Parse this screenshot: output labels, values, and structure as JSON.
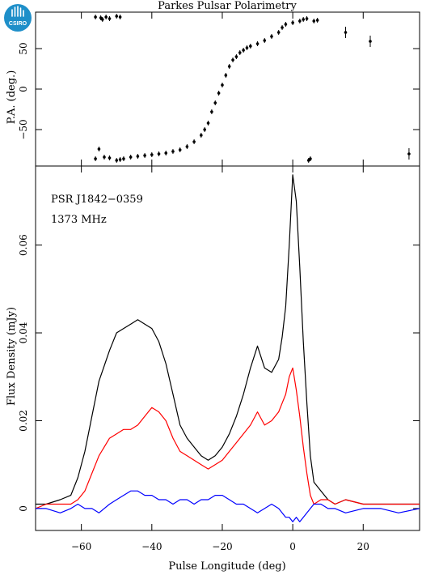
{
  "chart_data": [
    {
      "type": "scatter",
      "panel": "top",
      "title": "Parkes Pulsar Polarimetry",
      "ylabel": "P.A. (deg.)",
      "xlim": [
        -73,
        36
      ],
      "ylim": [
        -95,
        95
      ],
      "yticks": [
        -50,
        0,
        50
      ],
      "grid": false,
      "series": [
        {
          "points": [
            [
              -56,
              89
            ],
            [
              -54.5,
              88
            ],
            [
              -54,
              86
            ],
            [
              -53,
              89
            ],
            [
              -52,
              87
            ],
            [
              -50,
              90
            ],
            [
              -49,
              89
            ],
            [
              -56,
              -86
            ],
            [
              -55,
              -74
            ],
            [
              -53.5,
              -84
            ],
            [
              -52,
              -85
            ],
            [
              -50,
              -88
            ],
            [
              -49,
              -87
            ],
            [
              -48,
              -86
            ],
            [
              -46,
              -84
            ],
            [
              -44,
              -83
            ],
            [
              -42,
              -82
            ],
            [
              -40,
              -81
            ],
            [
              -38,
              -80
            ],
            [
              -36,
              -79
            ],
            [
              -34,
              -77
            ],
            [
              -32,
              -75
            ],
            [
              -30,
              -71
            ],
            [
              -28,
              -65
            ],
            [
              -26,
              -57
            ],
            [
              -25,
              -50
            ],
            [
              -24,
              -42
            ],
            [
              -23,
              -28
            ],
            [
              -22,
              -17
            ],
            [
              -21,
              -5
            ],
            [
              -20,
              5
            ],
            [
              -19,
              17
            ],
            [
              -18,
              28
            ],
            [
              -17,
              36
            ],
            [
              -16,
              40
            ],
            [
              -15,
              45
            ],
            [
              -14,
              48
            ],
            [
              -13,
              51
            ],
            [
              -12,
              53
            ],
            [
              -10,
              56
            ],
            [
              -8,
              60
            ],
            [
              -6,
              65
            ],
            [
              -4,
              70
            ],
            [
              -3,
              76
            ],
            [
              -2,
              80
            ],
            [
              0,
              82
            ],
            [
              2,
              84
            ],
            [
              3,
              86
            ],
            [
              4,
              87
            ],
            [
              4.5,
              -88
            ],
            [
              5,
              -86
            ],
            [
              6,
              84
            ],
            [
              7,
              85
            ],
            [
              15,
              70
            ],
            [
              22,
              59
            ],
            [
              33,
              -80
            ]
          ]
        }
      ]
    },
    {
      "type": "line",
      "panel": "bottom",
      "title": "",
      "xlabel": "Pulse Longitude (deg)",
      "ylabel": "Flux Density (mJy)",
      "xlim": [
        -73,
        36
      ],
      "ylim": [
        -0.005,
        0.078
      ],
      "xticks": [
        -60,
        -40,
        -20,
        0,
        20
      ],
      "yticks": [
        0,
        0.02,
        0.04,
        0.06
      ],
      "ytick_labels": [
        "0",
        "0.02",
        "0.04",
        "0.06"
      ],
      "annotations": [
        "PSR J1842−0359",
        "1373 MHz"
      ],
      "grid": false,
      "series": [
        {
          "color": "#000000",
          "x": [
            -73,
            -70,
            -66,
            -63,
            -61,
            -59,
            -57,
            -55,
            -52,
            -50,
            -48,
            -46,
            -44,
            -42,
            -40,
            -38,
            -36,
            -34,
            -32,
            -30,
            -28,
            -26,
            -24,
            -22,
            -20,
            -18,
            -16,
            -14,
            -12,
            -10,
            -8,
            -6,
            -4,
            -3,
            -2,
            -1,
            0,
            1,
            2,
            3,
            4,
            5,
            6,
            8,
            10,
            12,
            15,
            20,
            25,
            30,
            36
          ],
          "y": [
            0.001,
            0.001,
            0.002,
            0.003,
            0.007,
            0.013,
            0.021,
            0.029,
            0.036,
            0.04,
            0.041,
            0.042,
            0.043,
            0.042,
            0.041,
            0.038,
            0.033,
            0.026,
            0.019,
            0.016,
            0.014,
            0.012,
            0.011,
            0.012,
            0.014,
            0.017,
            0.021,
            0.026,
            0.032,
            0.037,
            0.032,
            0.031,
            0.034,
            0.039,
            0.046,
            0.06,
            0.076,
            0.07,
            0.055,
            0.038,
            0.024,
            0.012,
            0.006,
            0.004,
            0.002,
            0.001,
            0.002,
            0.001,
            0.001,
            0.001,
            0.001
          ]
        },
        {
          "color": "#ff0000",
          "x": [
            -73,
            -70,
            -66,
            -63,
            -61,
            -59,
            -57,
            -55,
            -52,
            -50,
            -48,
            -46,
            -44,
            -42,
            -40,
            -38,
            -36,
            -34,
            -32,
            -30,
            -28,
            -26,
            -24,
            -22,
            -20,
            -18,
            -16,
            -14,
            -12,
            -10,
            -8,
            -6,
            -4,
            -3,
            -2,
            -1,
            0,
            1,
            2,
            3,
            4,
            5,
            6,
            8,
            10,
            12,
            15,
            20,
            25,
            30,
            36
          ],
          "y": [
            0.0,
            0.001,
            0.001,
            0.001,
            0.002,
            0.004,
            0.008,
            0.012,
            0.016,
            0.017,
            0.018,
            0.018,
            0.019,
            0.021,
            0.023,
            0.022,
            0.02,
            0.016,
            0.013,
            0.012,
            0.011,
            0.01,
            0.009,
            0.01,
            0.011,
            0.013,
            0.015,
            0.017,
            0.019,
            0.022,
            0.019,
            0.02,
            0.022,
            0.024,
            0.026,
            0.03,
            0.032,
            0.027,
            0.021,
            0.014,
            0.008,
            0.003,
            0.001,
            0.002,
            0.002,
            0.001,
            0.002,
            0.001,
            0.001,
            0.001,
            0.001
          ]
        },
        {
          "color": "#0000ff",
          "x": [
            -73,
            -70,
            -66,
            -63,
            -61,
            -59,
            -57,
            -55,
            -52,
            -50,
            -48,
            -46,
            -44,
            -42,
            -40,
            -38,
            -36,
            -34,
            -32,
            -30,
            -28,
            -26,
            -24,
            -22,
            -20,
            -18,
            -16,
            -14,
            -12,
            -10,
            -8,
            -6,
            -4,
            -3,
            -2,
            -1,
            0,
            1,
            2,
            3,
            4,
            5,
            6,
            8,
            10,
            12,
            15,
            20,
            25,
            30,
            36
          ],
          "y": [
            0.0,
            0.0,
            -0.001,
            0.0,
            0.001,
            0.0,
            0.0,
            -0.001,
            0.001,
            0.002,
            0.003,
            0.004,
            0.004,
            0.003,
            0.003,
            0.002,
            0.002,
            0.001,
            0.002,
            0.002,
            0.001,
            0.002,
            0.002,
            0.003,
            0.003,
            0.002,
            0.001,
            0.001,
            0.0,
            -0.001,
            0.0,
            0.001,
            0.0,
            -0.001,
            -0.002,
            -0.002,
            -0.003,
            -0.002,
            -0.003,
            -0.002,
            -0.001,
            0.0,
            0.001,
            0.001,
            0.0,
            0.0,
            -0.001,
            0.0,
            0.0,
            -0.001,
            0.0
          ]
        }
      ]
    }
  ],
  "logo": {
    "text": "CSIRO",
    "color": "#1e8fc9"
  }
}
